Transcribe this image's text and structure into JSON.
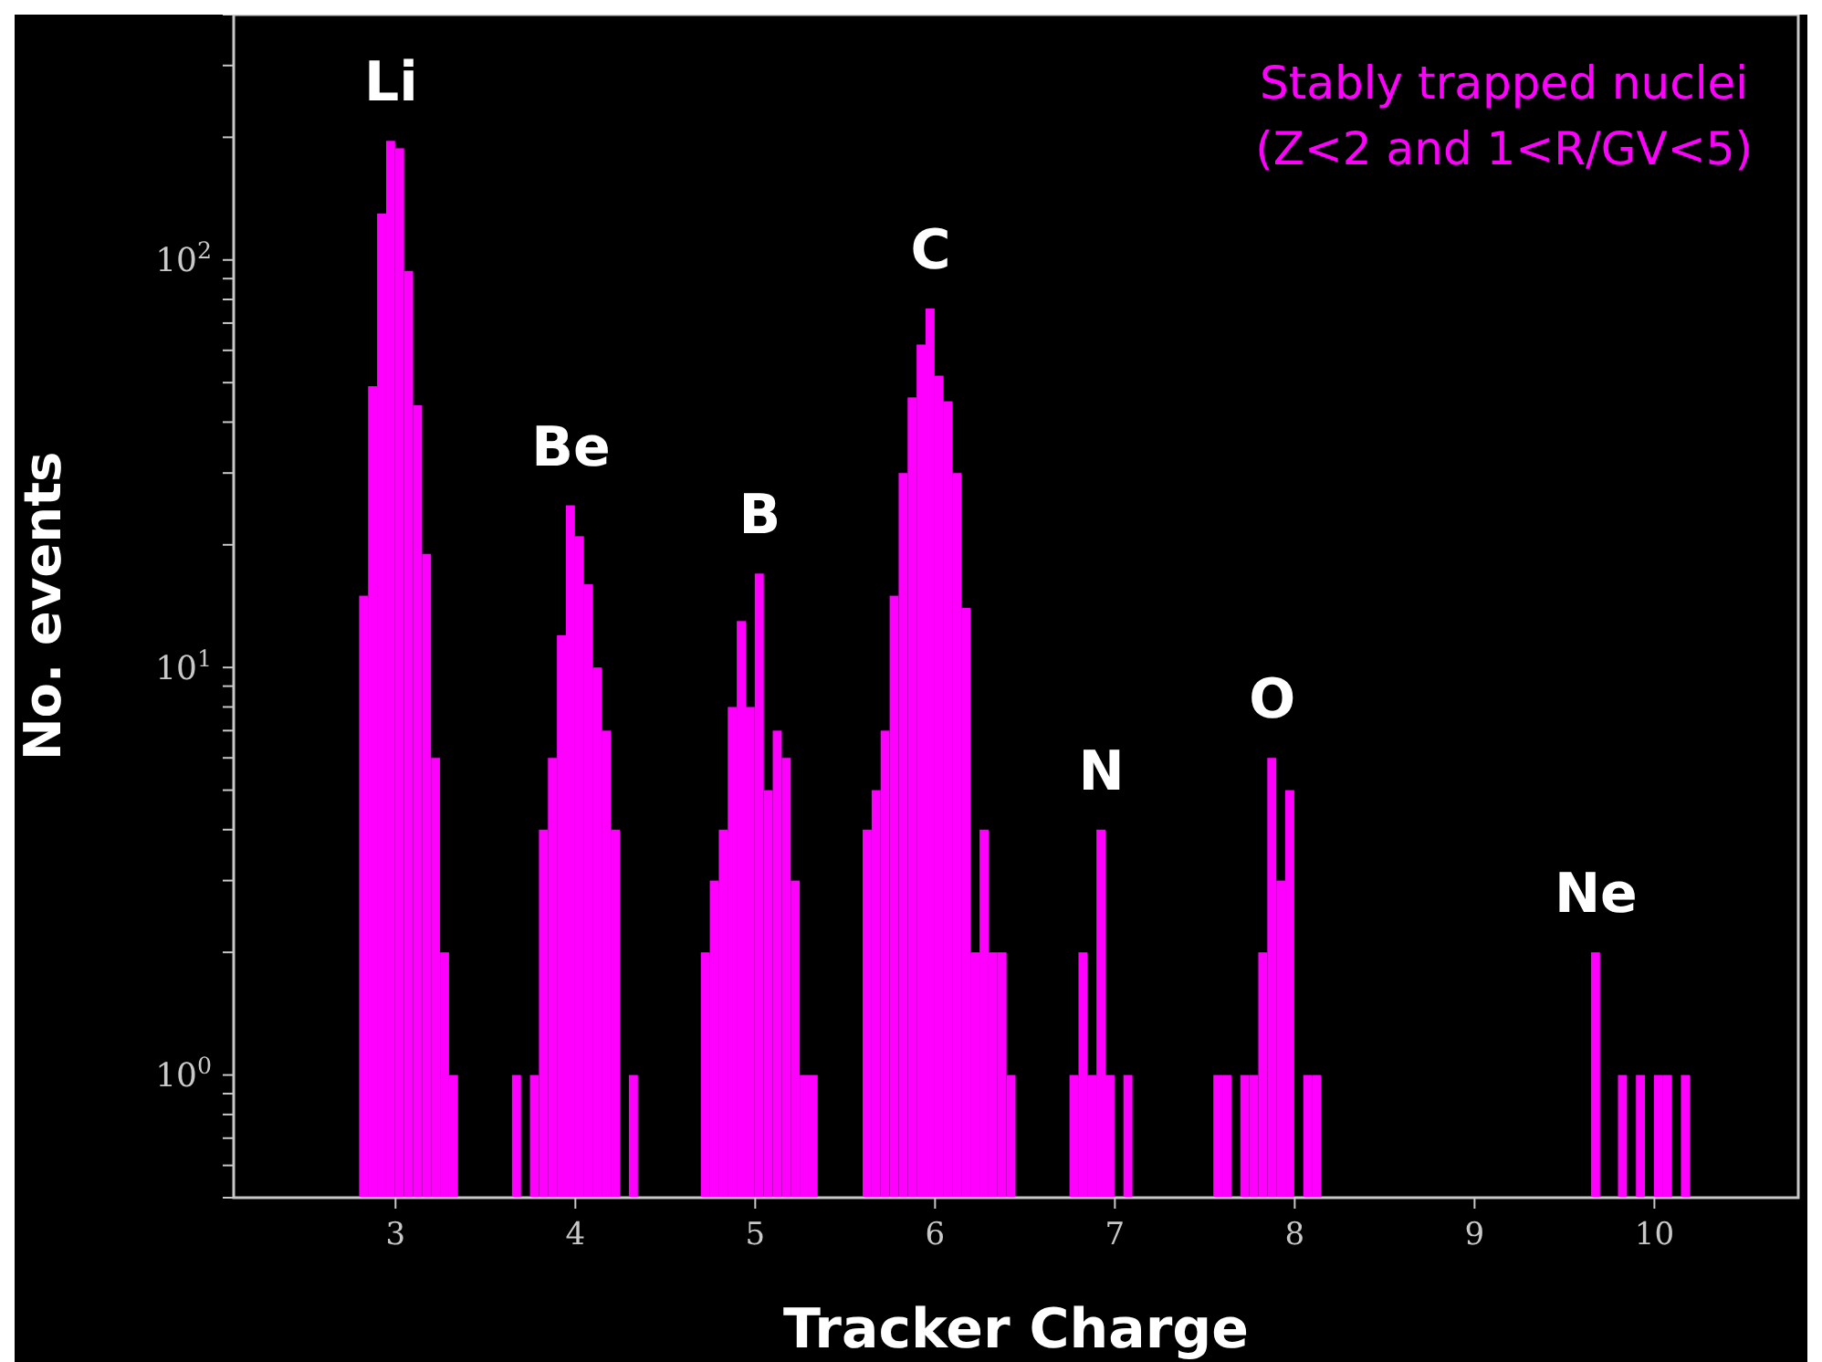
{
  "chart_data": {
    "type": "histogram",
    "xlabel": "Tracker Charge",
    "ylabel": "No. events",
    "color": "#ff00ff",
    "log": "y",
    "bins": [
      2.8,
      2.85,
      2.9,
      2.95,
      3.0,
      3.05,
      3.1,
      3.15,
      3.2,
      3.25,
      3.3,
      3.35,
      3.4,
      3.45,
      3.5,
      3.55,
      3.6,
      3.65,
      3.7,
      3.75,
      3.8,
      3.85,
      3.9,
      3.95,
      4.0,
      4.05,
      4.1,
      4.15,
      4.2,
      4.25,
      4.3,
      4.35,
      4.4,
      4.45,
      4.5,
      4.55,
      4.6,
      4.65,
      4.7,
      4.75,
      4.8,
      4.85,
      4.9,
      4.95,
      5.0,
      5.05,
      5.1,
      5.15,
      5.2,
      5.25,
      5.3,
      5.35,
      5.4,
      5.45,
      5.5,
      5.55,
      5.6,
      5.65,
      5.7,
      5.75,
      5.8,
      5.85,
      5.9,
      5.95,
      6.0,
      6.05,
      6.1,
      6.15,
      6.2,
      6.25,
      6.3,
      6.35,
      6.4,
      6.45,
      6.5,
      6.55,
      6.6,
      6.65,
      6.7,
      6.75,
      6.8,
      6.85,
      6.9,
      6.95,
      7.0,
      7.05,
      7.1,
      7.15,
      7.2,
      7.25,
      7.3,
      7.35,
      7.4,
      7.45,
      7.5,
      7.55,
      7.6,
      7.65,
      7.7,
      7.75,
      7.8,
      7.85,
      7.9,
      7.95,
      8.0,
      8.05,
      8.1,
      8.15,
      8.2,
      8.25,
      8.3,
      8.35,
      8.4,
      8.45,
      8.5,
      8.55,
      8.6,
      8.65,
      8.7,
      8.75,
      8.8,
      8.85,
      8.9,
      8.95,
      9.0,
      9.05,
      9.1,
      9.15,
      9.2,
      9.25,
      9.3,
      9.35,
      9.4,
      9.45,
      9.5,
      9.55,
      9.6,
      9.65,
      9.7,
      9.75,
      9.8,
      9.85,
      9.9,
      9.95,
      10.0,
      10.05,
      10.1,
      10.15,
      10.2
    ],
    "values": [
      15,
      49,
      130,
      196,
      188,
      94,
      44,
      19,
      6,
      2,
      1,
      null,
      null,
      null,
      null,
      null,
      null,
      1,
      null,
      1,
      4,
      6,
      12,
      25,
      21,
      16,
      10,
      7,
      4,
      null,
      1,
      null,
      null,
      null,
      null,
      null,
      null,
      null,
      2,
      3,
      4,
      8,
      13,
      8,
      17,
      5,
      7,
      6,
      3,
      1,
      1,
      null,
      null,
      null,
      null,
      null,
      4,
      5,
      7,
      15,
      30,
      46,
      62,
      76,
      52,
      45,
      30,
      14,
      2,
      4,
      2,
      2,
      1,
      null,
      null,
      null,
      null,
      null,
      null,
      1,
      2,
      1,
      4,
      1,
      null,
      1,
      null,
      null,
      null,
      null,
      null,
      null,
      null,
      null,
      null,
      1,
      1,
      null,
      1,
      1,
      2,
      6,
      3,
      5,
      null,
      1,
      1,
      null,
      null,
      null,
      null,
      null,
      null,
      null,
      null,
      null,
      null,
      null,
      null,
      null,
      null,
      null,
      null,
      null,
      null,
      null,
      null,
      null,
      null,
      null,
      null,
      null,
      null,
      null,
      null,
      null,
      null,
      2,
      null,
      null,
      1,
      null,
      1,
      null,
      1,
      1,
      null,
      1
    ],
    "xlim": [
      2.1,
      10.8
    ],
    "xticks": [
      3,
      4,
      5,
      6,
      7,
      8,
      9,
      10
    ],
    "ylim": [
      0.5,
      400
    ],
    "yticks": [
      {
        "value": 0.5,
        "label": null
      },
      {
        "value": 0.6,
        "label": null
      },
      {
        "value": 0.7,
        "label": null
      },
      {
        "value": 0.8,
        "label": null
      },
      {
        "value": 0.9,
        "label": null
      },
      {
        "value": 1,
        "label": "10$^{0}$"
      },
      {
        "value": 2,
        "label": null
      },
      {
        "value": 3,
        "label": null
      },
      {
        "value": 4,
        "label": null
      },
      {
        "value": 5,
        "label": null
      },
      {
        "value": 6,
        "label": null
      },
      {
        "value": 7,
        "label": null
      },
      {
        "value": 8,
        "label": null
      },
      {
        "value": 9,
        "label": null
      },
      {
        "value": 10,
        "label": "10$^{1}$"
      },
      {
        "value": 20,
        "label": null
      },
      {
        "value": 30,
        "label": null
      },
      {
        "value": 40,
        "label": null
      },
      {
        "value": 50,
        "label": null
      },
      {
        "value": 60,
        "label": null
      },
      {
        "value": 70,
        "label": null
      },
      {
        "value": 80,
        "label": null
      },
      {
        "value": 90,
        "label": null
      },
      {
        "value": 100,
        "label": "10$^{2}$"
      },
      {
        "value": 200,
        "label": null
      },
      {
        "value": 300,
        "label": null
      },
      {
        "value": 400,
        "label": null
      }
    ],
    "annotations": [
      {
        "text": "Li",
        "x": 2.975,
        "y": 196
      },
      {
        "text": "Be",
        "x": 3.975,
        "y": 25
      },
      {
        "text": "B",
        "x": 5.025,
        "y": 17
      },
      {
        "text": "C",
        "x": 5.975,
        "y": 76
      },
      {
        "text": "N",
        "x": 6.925,
        "y": 4
      },
      {
        "text": "O",
        "x": 7.875,
        "y": 6
      },
      {
        "text": "Ne",
        "x": 9.675,
        "y": 2
      },
      "Stably trapped nuclei\n(Z<2 and 1<R/GV<5)"
    ],
    "grid": false,
    "legend": false
  }
}
